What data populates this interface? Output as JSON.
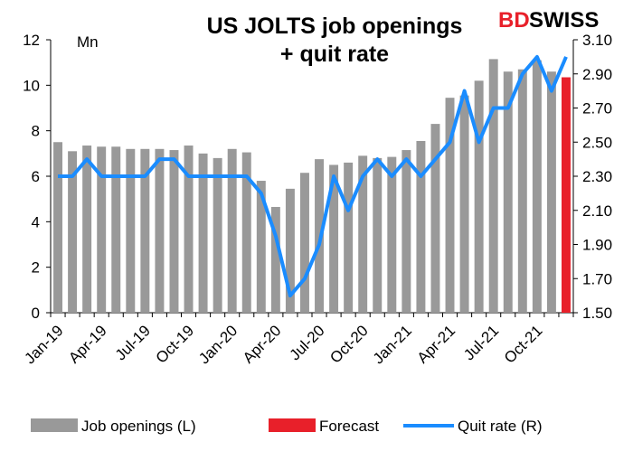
{
  "chart_data": {
    "type": "bar",
    "title": "US JOLTS job openings\n+ quit rate",
    "unit_label": "Mn",
    "brand": {
      "bd": "BD",
      "swiss": "SWISS"
    },
    "categories": [
      "Jan-19",
      "Feb-19",
      "Mar-19",
      "Apr-19",
      "May-19",
      "Jun-19",
      "Jul-19",
      "Aug-19",
      "Sep-19",
      "Oct-19",
      "Nov-19",
      "Dec-19",
      "Jan-20",
      "Feb-20",
      "Mar-20",
      "Apr-20",
      "May-20",
      "Jun-20",
      "Jul-20",
      "Aug-20",
      "Sep-20",
      "Oct-20",
      "Nov-20",
      "Dec-20",
      "Jan-21",
      "Feb-21",
      "Mar-21",
      "Apr-21",
      "May-21",
      "Jun-21",
      "Jul-21",
      "Aug-21",
      "Sep-21",
      "Oct-21",
      "Nov-21",
      "Dec-21"
    ],
    "x_tick_labels": [
      "Jan-19",
      "Apr-19",
      "Jul-19",
      "Oct-19",
      "Jan-20",
      "Apr-20",
      "Jul-20",
      "Oct-20",
      "Jan-21",
      "Apr-21",
      "Jul-21",
      "Oct-21"
    ],
    "series": [
      {
        "name": "Job openings (L)",
        "axis": "left",
        "type": "bar",
        "color": "#999999",
        "values": [
          7.5,
          7.1,
          7.35,
          7.3,
          7.3,
          7.2,
          7.2,
          7.2,
          7.15,
          7.35,
          7.0,
          6.8,
          7.2,
          7.05,
          5.8,
          4.65,
          5.45,
          6.15,
          6.75,
          6.5,
          6.6,
          6.9,
          6.8,
          6.85,
          7.15,
          7.55,
          8.3,
          9.45,
          9.55,
          10.2,
          11.15,
          10.6,
          10.7,
          11.1,
          10.6,
          null
        ]
      },
      {
        "name": "Forecast",
        "axis": "left",
        "type": "bar",
        "color": "#e8202a",
        "values": [
          null,
          null,
          null,
          null,
          null,
          null,
          null,
          null,
          null,
          null,
          null,
          null,
          null,
          null,
          null,
          null,
          null,
          null,
          null,
          null,
          null,
          null,
          null,
          null,
          null,
          null,
          null,
          null,
          null,
          null,
          null,
          null,
          null,
          null,
          null,
          10.35
        ]
      },
      {
        "name": "Quit rate (R)",
        "axis": "right",
        "type": "line",
        "color": "#1a8cff",
        "values": [
          2.3,
          2.3,
          2.4,
          2.3,
          2.3,
          2.3,
          2.3,
          2.4,
          2.4,
          2.3,
          2.3,
          2.3,
          2.3,
          2.3,
          2.2,
          1.95,
          1.6,
          1.7,
          1.9,
          2.3,
          2.1,
          2.3,
          2.4,
          2.3,
          2.4,
          2.3,
          2.4,
          2.5,
          2.8,
          2.5,
          2.7,
          2.7,
          2.9,
          3.0,
          2.8,
          3.0
        ]
      }
    ],
    "y_left": {
      "min": 0,
      "max": 12,
      "ticks": [
        "0",
        "2",
        "4",
        "6",
        "8",
        "10",
        "12"
      ]
    },
    "y_right": {
      "min": 1.5,
      "max": 3.1,
      "ticks": [
        "1.50",
        "1.70",
        "1.90",
        "2.10",
        "2.30",
        "2.50",
        "2.70",
        "2.90",
        "3.10"
      ]
    },
    "legend": {
      "placement": "bottom"
    }
  }
}
